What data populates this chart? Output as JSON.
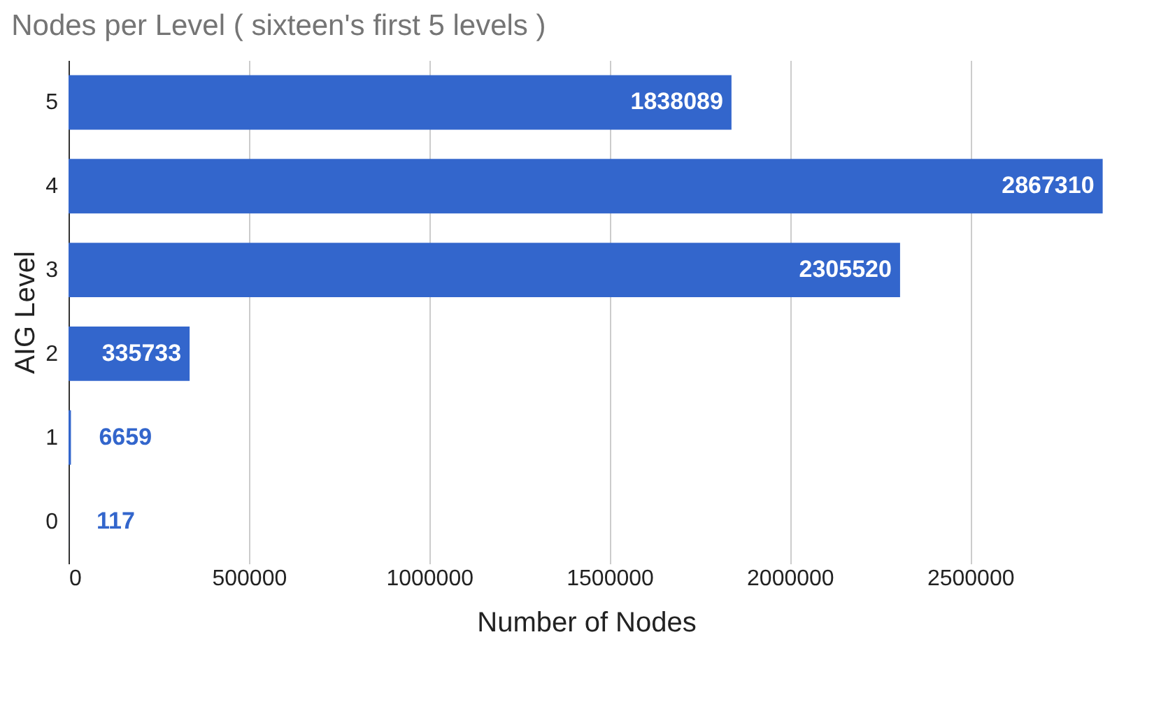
{
  "chart_data": {
    "type": "bar",
    "orientation": "horizontal",
    "title": "Nodes per Level ( sixteen's first 5 levels )",
    "xlabel": "Number of Nodes",
    "ylabel": "AIG Level",
    "categories": [
      "5",
      "4",
      "3",
      "2",
      "1",
      "0"
    ],
    "values": [
      1838089,
      2867310,
      2305520,
      335733,
      6659,
      117
    ],
    "color": "#3366cc",
    "data_labels": true,
    "grid": "x",
    "xlim": [
      0,
      2870000
    ],
    "xticks": [
      0,
      500000,
      1000000,
      1500000,
      2000000,
      2500000
    ]
  }
}
